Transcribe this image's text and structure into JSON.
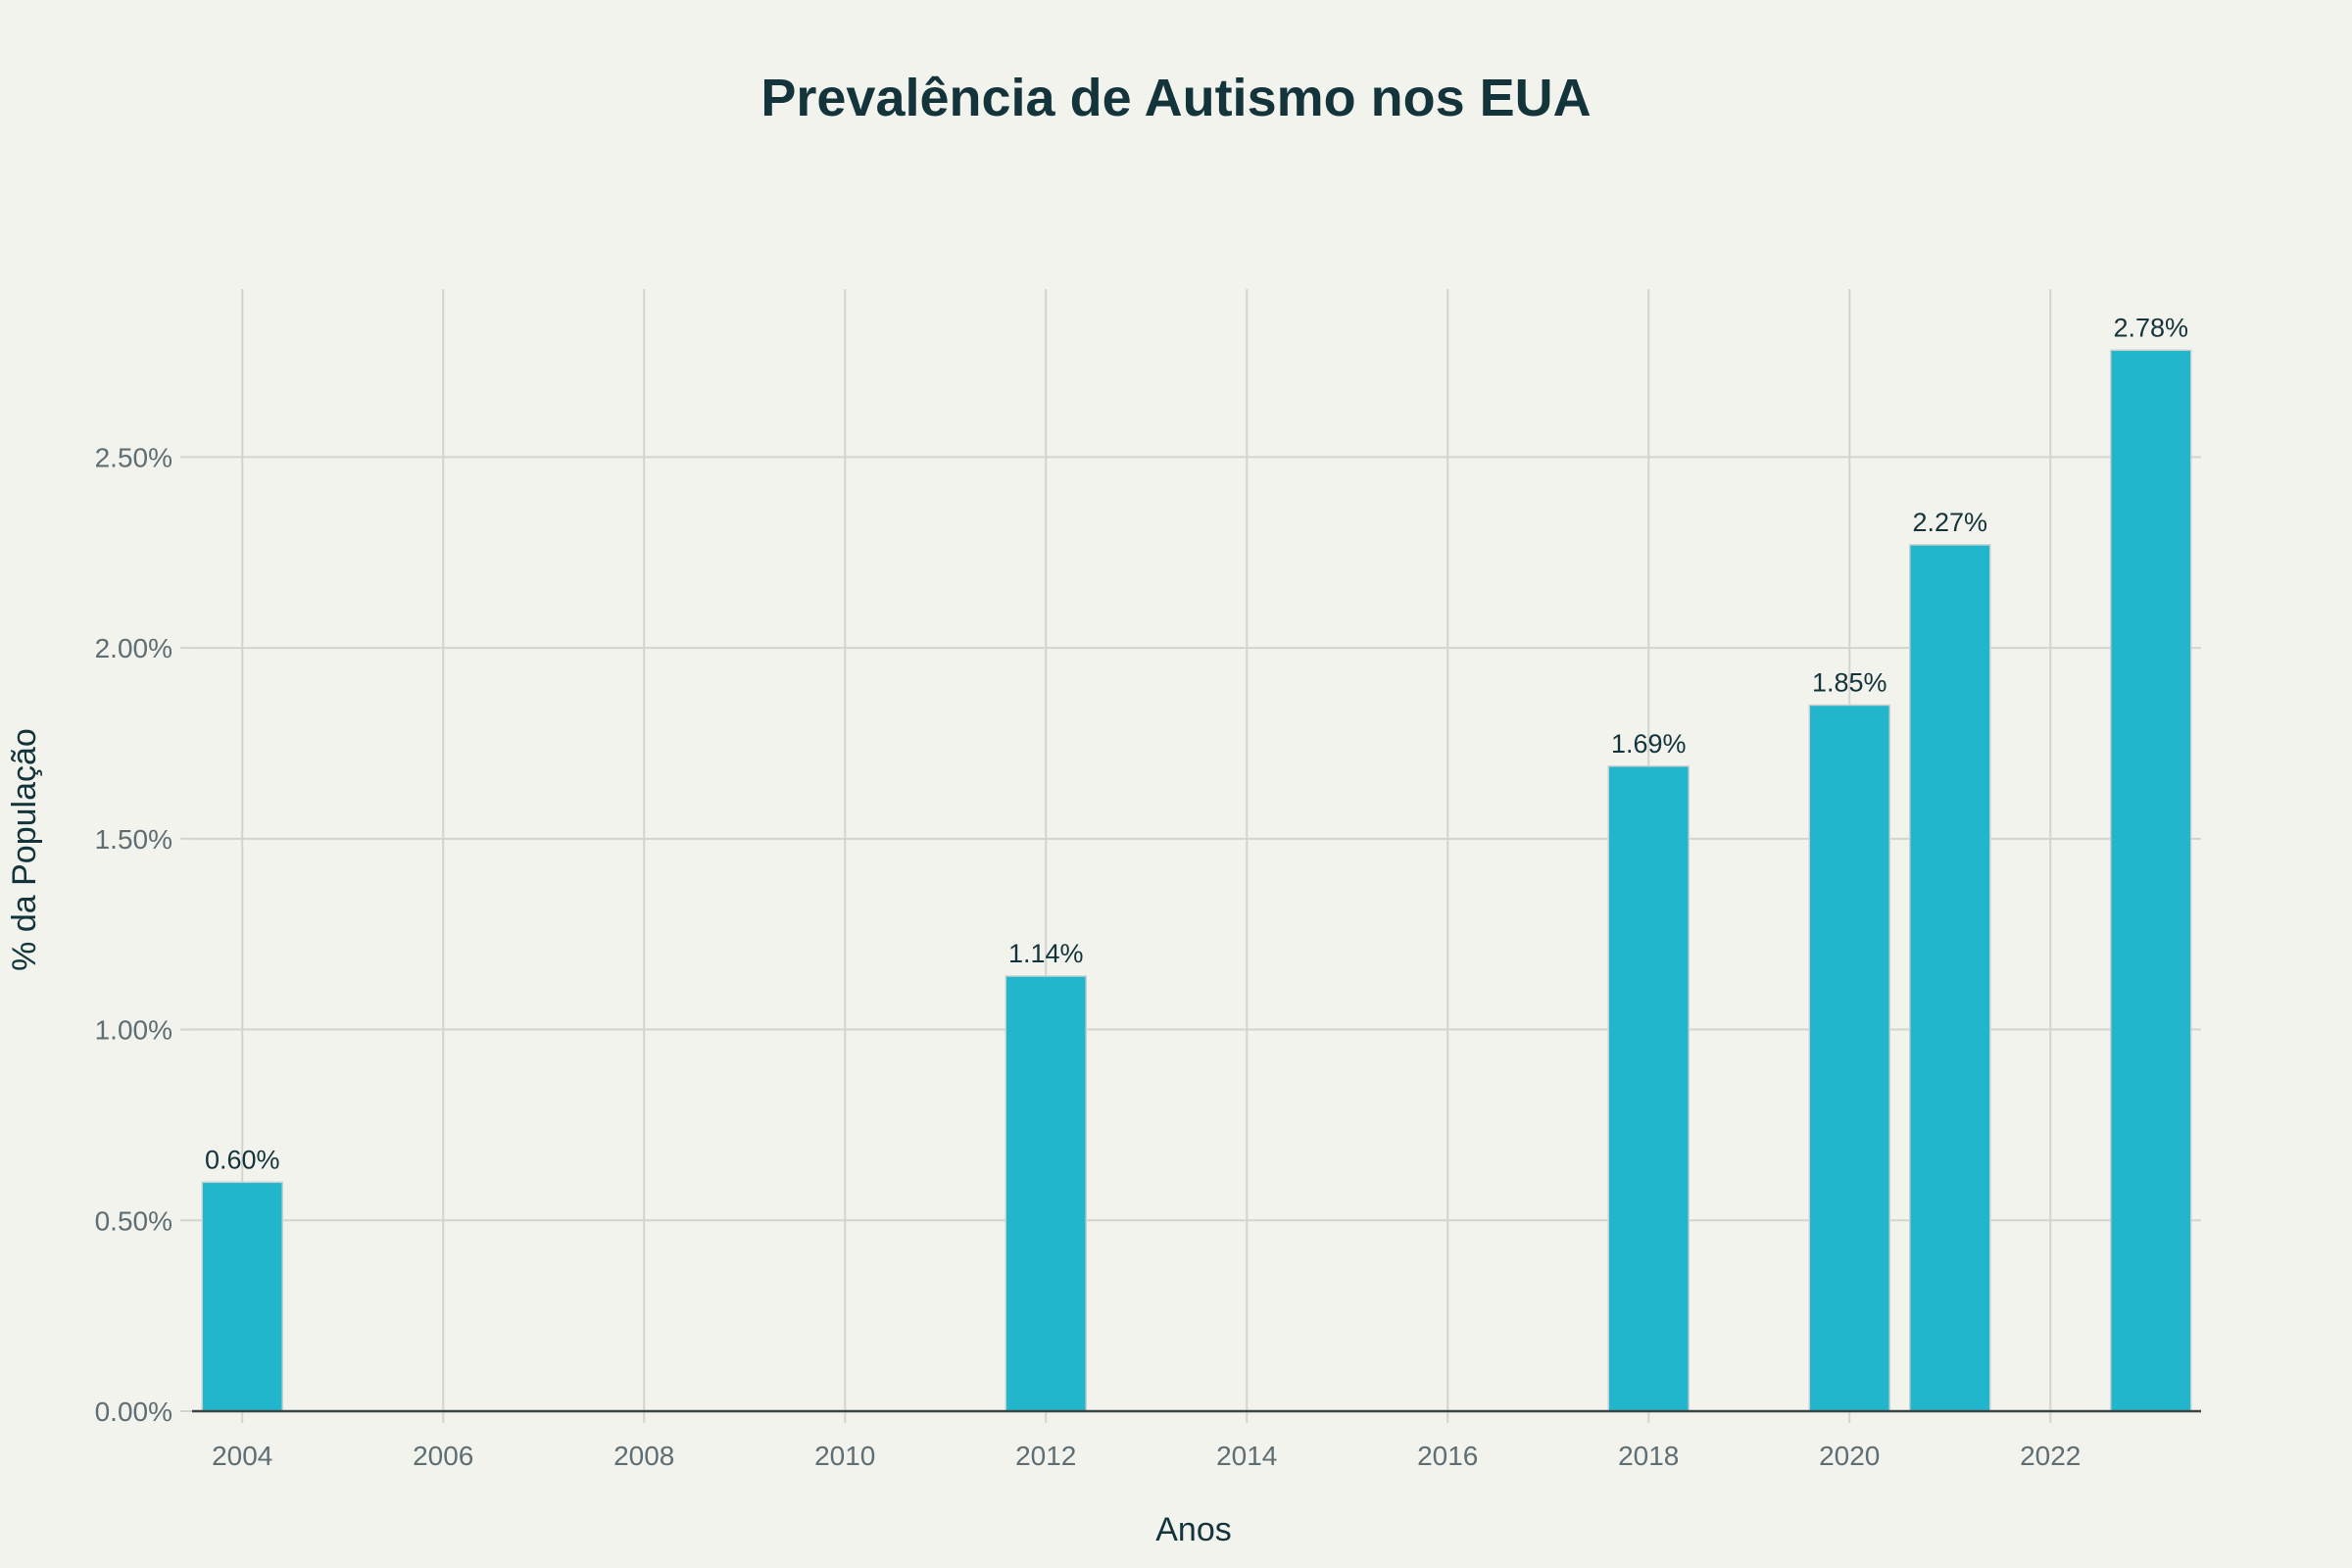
{
  "chart_data": {
    "type": "bar",
    "title": "Prevalência de Autismo nos EUA",
    "xlabel": "Anos",
    "ylabel": "% da População",
    "x": [
      2004,
      2012,
      2018,
      2020,
      2021,
      2023
    ],
    "values": [
      0.6,
      1.14,
      1.69,
      1.85,
      2.27,
      2.78
    ],
    "data_labels": [
      "0.60%",
      "1.14%",
      "1.69%",
      "1.85%",
      "2.27%",
      "2.78%"
    ],
    "xlim": [
      2003.5,
      2023.5
    ],
    "ylim": [
      0,
      2.94
    ],
    "x_ticks": [
      2004,
      2006,
      2008,
      2010,
      2012,
      2014,
      2016,
      2018,
      2020,
      2022
    ],
    "x_tick_labels": [
      "2004",
      "2006",
      "2008",
      "2010",
      "2012",
      "2014",
      "2016",
      "2018",
      "2020",
      "2022"
    ],
    "y_ticks": [
      0,
      0.5,
      1.0,
      1.5,
      2.0,
      2.5
    ],
    "y_tick_labels": [
      "0.00%",
      "0.50%",
      "1.00%",
      "1.50%",
      "2.00%",
      "2.50%"
    ],
    "grid": true,
    "colors": {
      "bar": "#21b6cb",
      "background": "#f3f3ee",
      "grid": "#d4d4cf",
      "text": "#13343b",
      "tick": "#5e6e73"
    }
  }
}
